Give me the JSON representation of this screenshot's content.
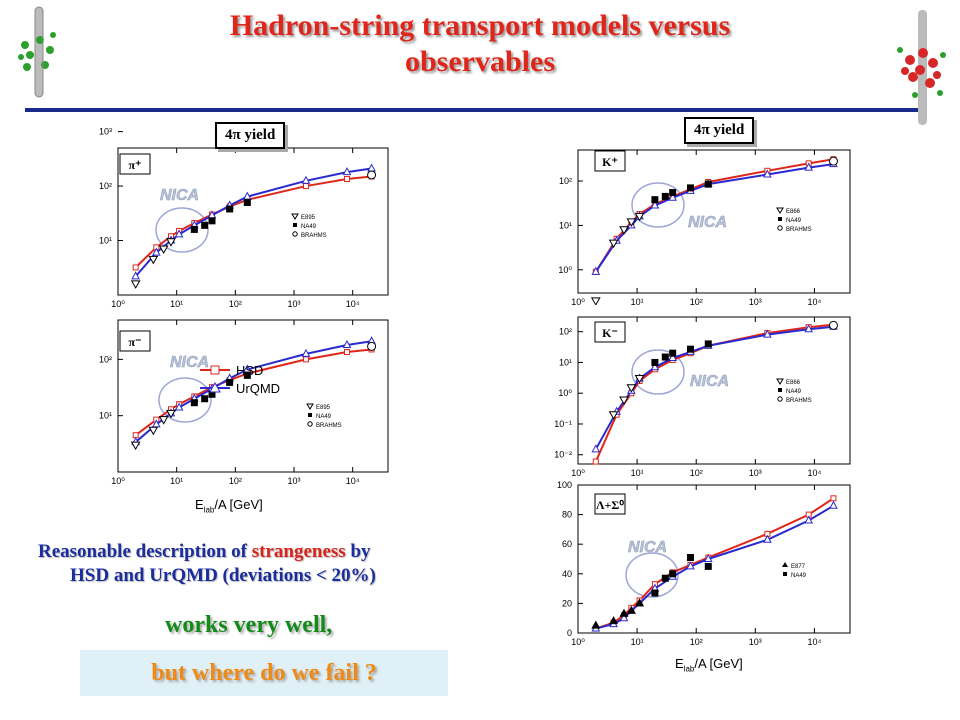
{
  "slide": {
    "title_line1": "Hadron-string transport models versus",
    "title_line2": "observables",
    "yield_tag": "4π yield",
    "x_axis_label": "E",
    "x_axis_sub": "lab",
    "x_axis_rest": "/A [GeV]",
    "caption_line1_a": "Reasonable description of ",
    "caption_line1_b": "strangeness",
    "caption_line1_c": " by",
    "caption_line2": "HSD and UrQMD   (deviations < 20%)",
    "works": "works very well,",
    "fail": "but where do we fail ?",
    "colors": {
      "title": "#e0261b",
      "hsd": "#e0261b",
      "urqmd": "#2a2ad0",
      "caption": "#1b2c9c",
      "works": "#138a1a",
      "fail": "#ee8a15"
    }
  },
  "chart_data": [
    {
      "type": "line",
      "panel": "pi+",
      "label": "π⁺",
      "yscale": "log",
      "xscale": "log",
      "xlim": [
        1,
        40000
      ],
      "ylim": [
        10,
        5000
      ],
      "x_ticks": [
        "10⁰",
        "10¹",
        "10²",
        "10³",
        "10⁴"
      ],
      "y_ticks": [
        "10¹",
        "10²",
        "10³"
      ],
      "annotation": "NICA",
      "series": [
        {
          "name": "HSD",
          "x": [
            2,
            4.5,
            8,
            11,
            20,
            40,
            80,
            160,
            1600,
            8000,
            21000
          ],
          "y": [
            32,
            75,
            120,
            150,
            210,
            300,
            420,
            560,
            1000,
            1350,
            1500
          ]
        },
        {
          "name": "UrQMD",
          "x": [
            2,
            4.5,
            8,
            11,
            20,
            40,
            80,
            160,
            1600,
            8000,
            21000
          ],
          "y": [
            22,
            60,
            100,
            130,
            190,
            290,
            440,
            640,
            1250,
            1800,
            2100
          ]
        }
      ],
      "data_sets": [
        {
          "name": "E895",
          "x": [
            2,
            4,
            6,
            8
          ],
          "y": [
            16,
            45,
            70,
            95
          ]
        },
        {
          "name": "NA49",
          "x": [
            20,
            30,
            40,
            80,
            160
          ],
          "y": [
            160,
            190,
            230,
            380,
            500
          ]
        },
        {
          "name": "BRAHMS",
          "x": [
            21000
          ],
          "y": [
            1600
          ]
        }
      ],
      "legend": [
        "E895",
        "NA49",
        "BRAHMS"
      ]
    },
    {
      "type": "line",
      "panel": "pi-",
      "label": "π⁻",
      "yscale": "log",
      "xscale": "log",
      "xlim": [
        1,
        40000
      ],
      "ylim": [
        10,
        5000
      ],
      "x_ticks": [
        "10⁰",
        "10¹",
        "10²",
        "10³",
        "10⁴"
      ],
      "y_ticks": [
        "10¹",
        "10²",
        "10³"
      ],
      "annotation": "NICA",
      "series": [
        {
          "name": "HSD",
          "x": [
            2,
            4.5,
            8,
            11,
            20,
            40,
            80,
            160,
            1600,
            8000,
            21000
          ],
          "y": [
            45,
            85,
            130,
            160,
            220,
            320,
            430,
            560,
            1000,
            1350,
            1500
          ]
        },
        {
          "name": "UrQMD",
          "x": [
            2,
            4.5,
            8,
            11,
            20,
            40,
            80,
            160,
            1600,
            8000,
            21000
          ],
          "y": [
            34,
            70,
            110,
            140,
            200,
            300,
            460,
            660,
            1250,
            1800,
            2100
          ]
        }
      ],
      "data_sets": [
        {
          "name": "E895",
          "x": [
            2,
            4,
            6,
            8
          ],
          "y": [
            30,
            55,
            85,
            110
          ]
        },
        {
          "name": "NA49",
          "x": [
            20,
            30,
            40,
            80,
            160
          ],
          "y": [
            170,
            200,
            240,
            390,
            520
          ]
        },
        {
          "name": "BRAHMS",
          "x": [
            21000
          ],
          "y": [
            1700
          ]
        }
      ],
      "legend": [
        "HSD",
        "UrQMD",
        "E895",
        "NA49",
        "BRAHMS"
      ]
    },
    {
      "type": "line",
      "panel": "K+",
      "label": "K⁺",
      "yscale": "log",
      "xscale": "log",
      "xlim": [
        1,
        40000
      ],
      "ylim": [
        0.3,
        500
      ],
      "x_ticks": [
        "10⁰",
        "10¹",
        "10²",
        "10³",
        "10⁴"
      ],
      "y_ticks": [
        "10⁰",
        "10¹",
        "10²"
      ],
      "annotation": "NICA",
      "series": [
        {
          "name": "HSD",
          "x": [
            2,
            4.5,
            8,
            11,
            20,
            40,
            80,
            160,
            1600,
            8000,
            21000
          ],
          "y": [
            0.9,
            5,
            12,
            18,
            30,
            45,
            65,
            95,
            170,
            250,
            310
          ]
        },
        {
          "name": "UrQMD",
          "x": [
            2,
            4.5,
            8,
            11,
            20,
            40,
            80,
            160,
            1600,
            8000,
            21000
          ],
          "y": [
            0.9,
            4.5,
            10,
            16,
            28,
            42,
            60,
            85,
            140,
            200,
            240
          ]
        }
      ],
      "data_sets": [
        {
          "name": "E866",
          "x": [
            2,
            4,
            6,
            8,
            11
          ],
          "y": [
            0.2,
            4,
            8,
            12,
            16
          ]
        },
        {
          "name": "NA49",
          "x": [
            20,
            30,
            40,
            80,
            160
          ],
          "y": [
            38,
            45,
            55,
            70,
            85
          ]
        },
        {
          "name": "BRAHMS",
          "x": [
            21000
          ],
          "y": [
            280
          ]
        }
      ],
      "legend": [
        "E866",
        "NA49",
        "BRAHMS"
      ]
    },
    {
      "type": "line",
      "panel": "K-",
      "label": "K⁻",
      "yscale": "log",
      "xscale": "log",
      "xlim": [
        1,
        40000
      ],
      "ylim": [
        0.005,
        300
      ],
      "x_ticks": [
        "10⁰",
        "10¹",
        "10²",
        "10³",
        "10⁴"
      ],
      "y_ticks": [
        "10⁻²",
        "10⁻¹",
        "10⁰",
        "10¹",
        "10²"
      ],
      "annotation": "NICA",
      "series": [
        {
          "name": "HSD",
          "x": [
            2,
            4.5,
            8,
            11,
            20,
            40,
            80,
            160,
            1600,
            8000,
            21000
          ],
          "y": [
            0.006,
            0.2,
            1,
            2.5,
            6,
            12,
            20,
            35,
            90,
            140,
            170
          ]
        },
        {
          "name": "UrQMD",
          "x": [
            2,
            4.5,
            8,
            11,
            20,
            40,
            80,
            160,
            1600,
            8000,
            21000
          ],
          "y": [
            0.015,
            0.25,
            1.2,
            3,
            7,
            14,
            22,
            35,
            80,
            120,
            145
          ]
        }
      ],
      "data_sets": [
        {
          "name": "E866",
          "x": [
            4,
            6,
            8,
            11
          ],
          "y": [
            0.2,
            0.6,
            1.5,
            3
          ]
        },
        {
          "name": "NA49",
          "x": [
            20,
            30,
            40,
            80,
            160
          ],
          "y": [
            10,
            15,
            20,
            27,
            40
          ]
        },
        {
          "name": "BRAHMS",
          "x": [
            21000
          ],
          "y": [
            160
          ]
        }
      ],
      "legend": [
        "E866",
        "NA49",
        "BRAHMS"
      ]
    },
    {
      "type": "line",
      "panel": "Lambda+Sigma0",
      "label": "Λ+Σ⁰",
      "yscale": "linear",
      "xscale": "log",
      "xlim": [
        1,
        40000
      ],
      "ylim": [
        0,
        100
      ],
      "x_ticks": [
        "10⁰",
        "10¹",
        "10²",
        "10³",
        "10⁴"
      ],
      "y_ticks": [
        "0",
        "20",
        "40",
        "60",
        "80",
        "100"
      ],
      "annotation": "NICA",
      "series": [
        {
          "name": "HSD",
          "x": [
            2,
            4,
            6,
            8,
            11,
            20,
            40,
            80,
            160,
            1600,
            8000,
            21000
          ],
          "y": [
            3,
            7,
            12,
            17,
            22,
            33,
            41,
            46,
            51,
            67,
            80,
            91
          ]
        },
        {
          "name": "UrQMD",
          "x": [
            2,
            4,
            6,
            8,
            11,
            20,
            40,
            80,
            160,
            1600,
            8000,
            21000
          ],
          "y": [
            3,
            6,
            10,
            15,
            20,
            30,
            38,
            45,
            50,
            63,
            76,
            86
          ]
        }
      ],
      "data_sets": [
        {
          "name": "E877",
          "x": [
            2,
            4,
            6,
            8,
            11
          ],
          "y": [
            5,
            8,
            13,
            15,
            20
          ]
        },
        {
          "name": "NA49",
          "x": [
            20,
            30,
            40,
            80,
            160
          ],
          "y": [
            27,
            37,
            40,
            51,
            45
          ]
        }
      ],
      "legend": [
        "E877",
        "NA49"
      ]
    }
  ]
}
